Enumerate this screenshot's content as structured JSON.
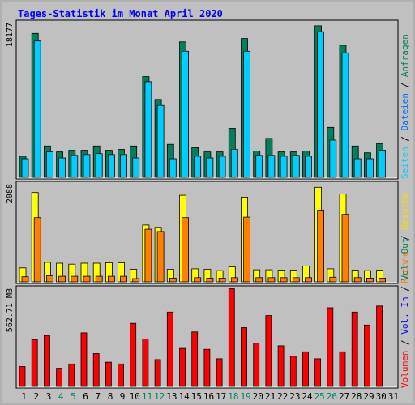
{
  "title": "Tages-Statistik im Monat April 2020",
  "colors": {
    "anfragen": "#00805c",
    "dateien": "#00e0ff",
    "seiten": "#00d0ff",
    "besuche": "#ffff00",
    "rechner": "#ff8000",
    "volumen": "#ff0000",
    "panel_bg": "#c0c0c0",
    "frame": "#b0b0b0"
  },
  "chart_data": [
    {
      "type": "bar",
      "ymax_label": "18177",
      "ylim": [
        0,
        18177
      ],
      "side_label": [
        {
          "text": "Seiten",
          "color": "#00d0ff"
        },
        {
          "text": " / ",
          "color": "#000000"
        },
        {
          "text": "Dateien",
          "color": "#0070ff"
        },
        {
          "text": " / ",
          "color": "#000000"
        },
        {
          "text": "Anfragen",
          "color": "#008060"
        }
      ],
      "categories": [
        "1",
        "2",
        "3",
        "4",
        "5",
        "6",
        "7",
        "8",
        "9",
        "10",
        "11",
        "12",
        "13",
        "14",
        "15",
        "16",
        "17",
        "18",
        "19",
        "20",
        "21",
        "22",
        "23",
        "24",
        "25",
        "26",
        "27",
        "28",
        "29",
        "30",
        "31"
      ],
      "series": [
        {
          "name": "Anfragen",
          "values": [
            2500,
            17000,
            3700,
            3000,
            3200,
            3200,
            3700,
            3200,
            3300,
            3700,
            11900,
            9200,
            3900,
            16000,
            3500,
            3000,
            3000,
            5800,
            16400,
            3100,
            4600,
            3000,
            3000,
            3100,
            17900,
            5900,
            15600,
            3700,
            2900,
            4000,
            0
          ]
        },
        {
          "name": "Dateien",
          "values": [
            2200,
            16100,
            3000,
            2300,
            2600,
            2700,
            2800,
            2700,
            2700,
            2300,
            11300,
            8500,
            2200,
            14900,
            2500,
            2300,
            2500,
            3300,
            14900,
            2600,
            2600,
            2500,
            2600,
            2500,
            17200,
            4400,
            14700,
            2200,
            2200,
            3200,
            0
          ]
        }
      ]
    },
    {
      "type": "bar",
      "ymax_label": "2088",
      "ylim": [
        0,
        2088
      ],
      "side_label": [
        {
          "text": "Rechner",
          "color": "#ff8000"
        },
        {
          "text": " / ",
          "color": "#000000"
        },
        {
          "text": "Besuche",
          "color": "#ffd800"
        }
      ],
      "categories": [
        "1",
        "2",
        "3",
        "4",
        "5",
        "6",
        "7",
        "8",
        "9",
        "10",
        "11",
        "12",
        "13",
        "14",
        "15",
        "16",
        "17",
        "18",
        "19",
        "20",
        "21",
        "22",
        "23",
        "24",
        "25",
        "26",
        "27",
        "28",
        "29",
        "30",
        "31"
      ],
      "series": [
        {
          "name": "Besuche",
          "values": [
            300,
            1920,
            420,
            400,
            380,
            400,
            400,
            410,
            410,
            270,
            1220,
            1170,
            270,
            1860,
            280,
            270,
            240,
            320,
            1820,
            260,
            260,
            250,
            250,
            340,
            2030,
            280,
            1890,
            250,
            240,
            250,
            0
          ]
        },
        {
          "name": "Rechner",
          "values": [
            110,
            1380,
            130,
            120,
            120,
            120,
            120,
            120,
            120,
            70,
            1130,
            1080,
            80,
            1380,
            90,
            80,
            80,
            90,
            1390,
            90,
            90,
            90,
            90,
            90,
            1540,
            100,
            1450,
            90,
            80,
            80,
            0
          ]
        }
      ]
    },
    {
      "type": "bar",
      "ymax_label": "562.71 MB",
      "ylim": [
        0,
        562.71
      ],
      "side_label": [
        {
          "text": "Volumen",
          "color": "#ff0000"
        },
        {
          "text": " / ",
          "color": "#000000"
        },
        {
          "text": "Vol. In",
          "color": "#0000ff"
        },
        {
          "text": " / ",
          "color": "#000000"
        },
        {
          "text": "Vol. Out",
          "color": "#008060"
        }
      ],
      "categories": [
        "1",
        "2",
        "3",
        "4",
        "5",
        "6",
        "7",
        "8",
        "9",
        "10",
        "11",
        "12",
        "13",
        "14",
        "15",
        "16",
        "17",
        "18",
        "19",
        "20",
        "21",
        "22",
        "23",
        "24",
        "25",
        "26",
        "27",
        "28",
        "29",
        "30",
        "31"
      ],
      "series": [
        {
          "name": "Volumen",
          "values": [
            115,
            270,
            295,
            105,
            130,
            310,
            190,
            140,
            130,
            365,
            275,
            155,
            430,
            220,
            315,
            215,
            160,
            565,
            340,
            250,
            410,
            235,
            175,
            200,
            160,
            455,
            200,
            430,
            355,
            465,
            0
          ]
        }
      ]
    }
  ],
  "x_label_colors": {
    "weekday": "#000000",
    "weekend": "#008060"
  },
  "weekend_days": [
    "4",
    "5",
    "11",
    "12",
    "18",
    "19",
    "25",
    "26"
  ]
}
